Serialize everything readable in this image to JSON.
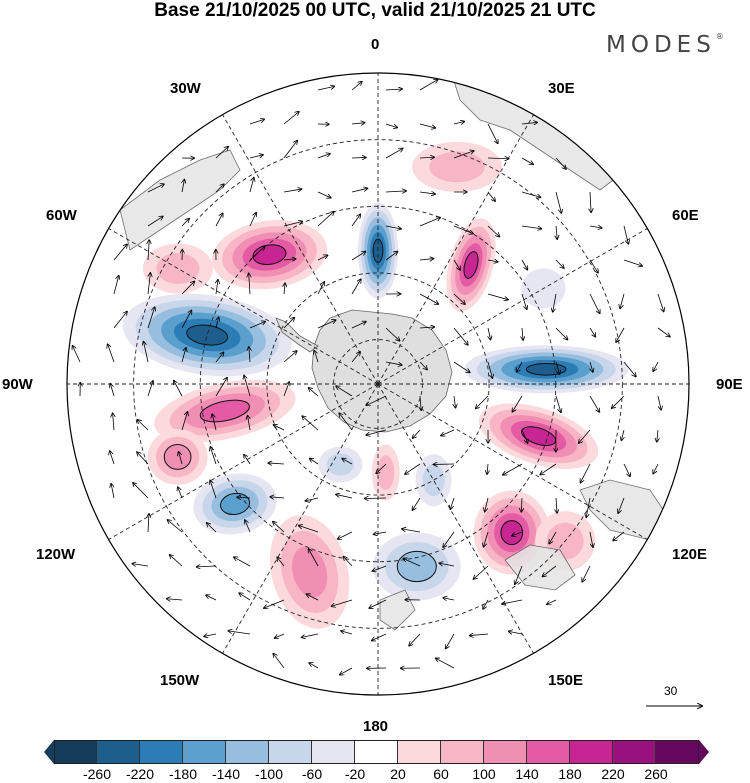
{
  "title": "Base 21/10/2025 00 UTC, valid 21/10/2025 21 UTC",
  "brand": {
    "name": "MODES",
    "mark": "®"
  },
  "longitude_labels": {
    "top": "0",
    "bottom": "180",
    "left": "90W",
    "right": "90E",
    "nw30": "30W",
    "ne30": "30E",
    "nw60": "60W",
    "ne60": "60E",
    "sw120": "120W",
    "se120": "120E",
    "sw150": "150W",
    "se150": "150E"
  },
  "reference_vector": {
    "value": "30"
  },
  "colorbar": {
    "colors": [
      "#163c5c",
      "#1e5e8e",
      "#2c7cb6",
      "#5a9fcd",
      "#97bede",
      "#c7d6ea",
      "#e6e6f2",
      "#ffffff",
      "#fbd9dc",
      "#f7b5c6",
      "#f08eb4",
      "#e45aa4",
      "#c72592",
      "#98117d",
      "#66075e"
    ],
    "ticks": [
      "-260",
      "-220",
      "-180",
      "-140",
      "-100",
      "-60",
      "-20",
      "20",
      "60",
      "100",
      "140",
      "180",
      "220",
      "260"
    ]
  },
  "anomalies": [
    {
      "lon": 0,
      "lat": -60,
      "value": -240,
      "sx": 20,
      "sy": 48,
      "rot": 0
    },
    {
      "lon": -40,
      "lat": -52,
      "value": 230,
      "sx": 58,
      "sy": 34,
      "rot": -8
    },
    {
      "lon": -74,
      "lat": -50,
      "value": -240,
      "sx": 85,
      "sy": 40,
      "rot": 8
    },
    {
      "lon": 38,
      "lat": -56,
      "value": 200,
      "sx": 22,
      "sy": 48,
      "rot": 15
    },
    {
      "lon": 85,
      "lat": -52,
      "value": -260,
      "sx": 82,
      "sy": 24,
      "rot": 0
    },
    {
      "lon": 108,
      "lat": -52,
      "value": 200,
      "sx": 62,
      "sy": 28,
      "rot": 18
    },
    {
      "lon": 138,
      "lat": -45,
      "value": 220,
      "sx": 38,
      "sy": 42,
      "rot": 0
    },
    {
      "lon": 168,
      "lat": -48,
      "value": -150,
      "sx": 44,
      "sy": 34,
      "rot": 0
    },
    {
      "lon": -160,
      "lat": -45,
      "value": 130,
      "sx": 38,
      "sy": 58,
      "rot": -15
    },
    {
      "lon": -130,
      "lat": -48,
      "value": -170,
      "sx": 42,
      "sy": 30,
      "rot": -10
    },
    {
      "lon": -100,
      "lat": -55,
      "value": 190,
      "sx": 72,
      "sy": 28,
      "rot": -12
    },
    {
      "lon": -110,
      "lat": -42,
      "value": 150,
      "sx": 30,
      "sy": 28,
      "rot": 0
    },
    {
      "lon": -155,
      "lat": -70,
      "value": -90,
      "sx": 22,
      "sy": 18,
      "rot": 0
    },
    {
      "lon": 175,
      "lat": -70,
      "value": 110,
      "sx": 14,
      "sy": 28,
      "rot": 0
    },
    {
      "lon": 150,
      "lat": -65,
      "value": -80,
      "sx": 18,
      "sy": 26,
      "rot": 0
    },
    {
      "lon": 60,
      "lat": -47,
      "value": -60,
      "sx": 22,
      "sy": 20,
      "rot": 0
    },
    {
      "lon": 20,
      "lat": -38,
      "value": 80,
      "sx": 45,
      "sy": 25,
      "rot": 0
    },
    {
      "lon": -60,
      "lat": -38,
      "value": 90,
      "sx": 35,
      "sy": 25,
      "rot": 0
    },
    {
      "lon": 130,
      "lat": -35,
      "value": 100,
      "sx": 30,
      "sy": 30,
      "rot": 0
    }
  ]
}
